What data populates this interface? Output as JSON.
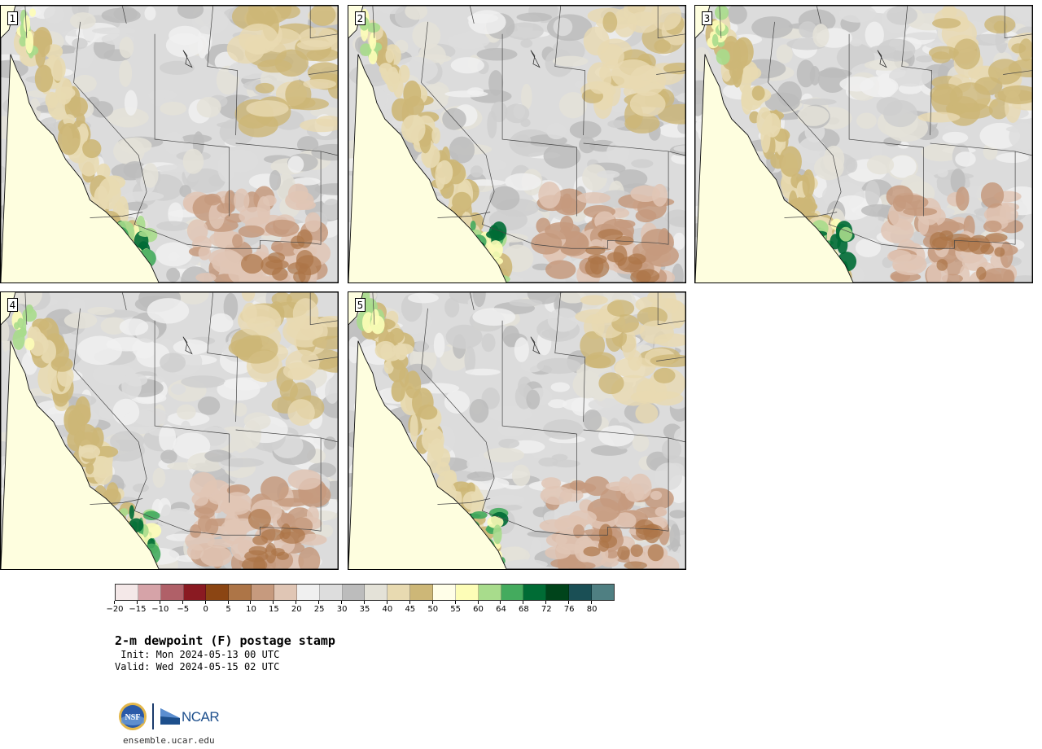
{
  "panels": [
    {
      "label": "1"
    },
    {
      "label": "2"
    },
    {
      "label": "3"
    },
    {
      "label": "4"
    },
    {
      "label": "5"
    }
  ],
  "colorbar": {
    "colors": [
      "#f4e8e8",
      "#d6a3a8",
      "#b06068",
      "#8a1a22",
      "#8b4513",
      "#ad7547",
      "#c69a7e",
      "#e0c6b5",
      "#f0f0f0",
      "#dddddd",
      "#bcbcbc",
      "#e4e2d8",
      "#e8dab1",
      "#cdb777",
      "#fffee8",
      "#fdfdb7",
      "#a8dc8c",
      "#44ab5e",
      "#006c35",
      "#00441b",
      "#1a4f55",
      "#4f7f82"
    ],
    "ticks": [
      "−20",
      "−15",
      "−10",
      "−5",
      "0",
      "5",
      "10",
      "15",
      "20",
      "25",
      "30",
      "35",
      "40",
      "45",
      "50",
      "55",
      "60",
      "64",
      "68",
      "72",
      "76",
      "80"
    ]
  },
  "title": "2-m dewpoint (F) postage stamp",
  "init": " Init: Mon 2024-05-13 00 UTC",
  "valid": "Valid: Wed 2024-05-15 02 UTC",
  "logos": {
    "nsf": "NSF",
    "ncar": "NCAR",
    "website": "ensemble.ucar.edu"
  }
}
